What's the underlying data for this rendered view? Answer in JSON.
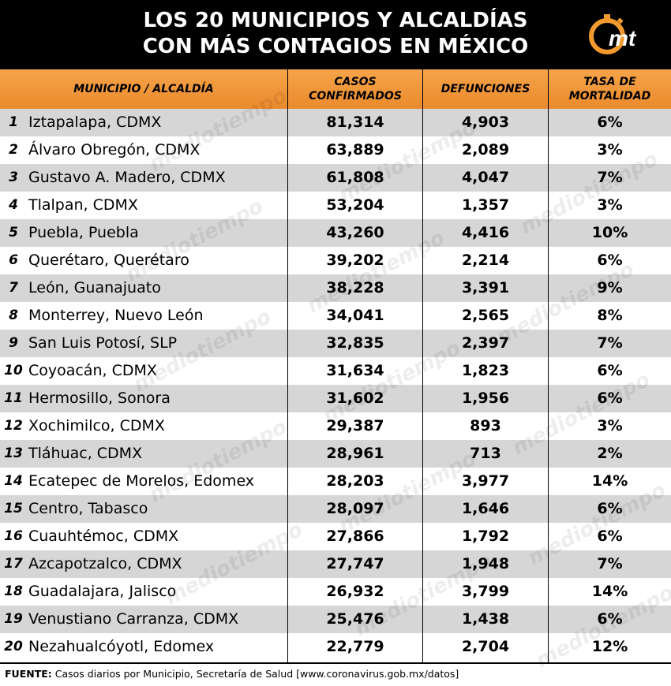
{
  "header": {
    "title_line1": "LOS 20 MUNICIPIOS Y ALCALDÍAS",
    "title_line2": "CON MÁS CONTAGIOS EN MÉXICO",
    "logo_text": "mt",
    "brand_color": "#f39a2f"
  },
  "table": {
    "headers": {
      "municipio": "MUNICIPIO / ALCALDÍA",
      "casos": "CASOS CONFIRMADOS",
      "defunciones": "DEFUNCIONES",
      "tasa": "TASA DE MORTALIDAD"
    },
    "rows": [
      {
        "n": "1",
        "name": "Iztapalapa, CDMX",
        "cases": "81,314",
        "deaths": "4,903",
        "rate": "6%"
      },
      {
        "n": "2",
        "name": "Álvaro Obregón, CDMX",
        "cases": "63,889",
        "deaths": "2,089",
        "rate": "3%"
      },
      {
        "n": "3",
        "name": "Gustavo A. Madero, CDMX",
        "cases": "61,808",
        "deaths": "4,047",
        "rate": "7%"
      },
      {
        "n": "4",
        "name": "Tlalpan, CDMX",
        "cases": "53,204",
        "deaths": "1,357",
        "rate": "3%"
      },
      {
        "n": "5",
        "name": "Puebla, Puebla",
        "cases": "43,260",
        "deaths": "4,416",
        "rate": "10%"
      },
      {
        "n": "6",
        "name": "Querétaro, Querétaro",
        "cases": "39,202",
        "deaths": "2,214",
        "rate": "6%"
      },
      {
        "n": "7",
        "name": "León, Guanajuato",
        "cases": "38,228",
        "deaths": "3,391",
        "rate": "9%"
      },
      {
        "n": "8",
        "name": "Monterrey, Nuevo León",
        "cases": "34,041",
        "deaths": "2,565",
        "rate": "8%"
      },
      {
        "n": "9",
        "name": "San Luis Potosí, SLP",
        "cases": "32,835",
        "deaths": "2,397",
        "rate": "7%"
      },
      {
        "n": "10",
        "name": "Coyoacán, CDMX",
        "cases": "31,634",
        "deaths": "1,823",
        "rate": "6%"
      },
      {
        "n": "11",
        "name": "Hermosillo, Sonora",
        "cases": "31,602",
        "deaths": "1,956",
        "rate": "6%"
      },
      {
        "n": "12",
        "name": "Xochimilco, CDMX",
        "cases": "29,387",
        "deaths": "893",
        "rate": "3%"
      },
      {
        "n": "13",
        "name": "Tláhuac, CDMX",
        "cases": "28,961",
        "deaths": "713",
        "rate": "2%"
      },
      {
        "n": "14",
        "name": "Ecatepec de Morelos, Edomex",
        "cases": "28,203",
        "deaths": "3,977",
        "rate": "14%"
      },
      {
        "n": "15",
        "name": "Centro, Tabasco",
        "cases": "28,097",
        "deaths": "1,646",
        "rate": "6%"
      },
      {
        "n": "16",
        "name": "Cuauhtémoc, CDMX",
        "cases": "27,866",
        "deaths": "1,792",
        "rate": "6%"
      },
      {
        "n": "17",
        "name": "Azcapotzalco, CDMX",
        "cases": "27,747",
        "deaths": "1,948",
        "rate": "7%"
      },
      {
        "n": "18",
        "name": "Guadalajara, Jalisco",
        "cases": "26,932",
        "deaths": "3,799",
        "rate": "14%"
      },
      {
        "n": "19",
        "name": "Venustiano Carranza, CDMX",
        "cases": "25,476",
        "deaths": "1,438",
        "rate": "6%"
      },
      {
        "n": "20",
        "name": "Nezahualcóyotl, Edomex",
        "cases": "22,779",
        "deaths": "2,704",
        "rate": "12%"
      }
    ]
  },
  "footer": {
    "label": "FUENTE:",
    "text": "Casos diarios por Municipio, Secretaría de Salud [www.coronavirus.gob.mx/datos]"
  },
  "watermark": "mediotiempo"
}
